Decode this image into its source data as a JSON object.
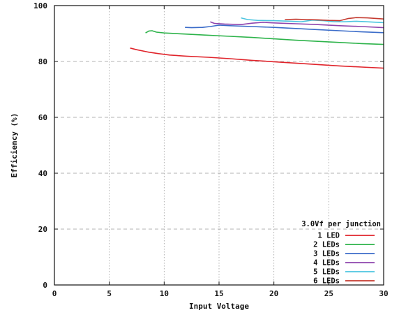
{
  "chart_data": {
    "type": "line",
    "title": "",
    "xlabel": "Input Voltage",
    "ylabel": "Efficiency (%)",
    "xlim": [
      0,
      30
    ],
    "ylim": [
      0,
      100
    ],
    "xticks": [
      0,
      5,
      10,
      15,
      20,
      25,
      30
    ],
    "yticks": [
      0,
      20,
      40,
      60,
      80,
      100
    ],
    "grid": true,
    "legend_position": "bottom-right",
    "legend_title": "3.0Vf per junction",
    "series": [
      {
        "name": "1 LED",
        "color": "#e0242b",
        "points": [
          [
            6.9,
            84.8
          ],
          [
            7.5,
            84.2
          ],
          [
            8.5,
            83.4
          ],
          [
            9.5,
            82.8
          ],
          [
            10.5,
            82.3
          ],
          [
            12,
            81.9
          ],
          [
            14,
            81.5
          ],
          [
            16,
            81.0
          ],
          [
            18,
            80.4
          ],
          [
            20,
            79.9
          ],
          [
            22,
            79.4
          ],
          [
            24,
            78.9
          ],
          [
            26,
            78.4
          ],
          [
            28,
            78.0
          ],
          [
            30,
            77.6
          ]
        ]
      },
      {
        "name": "2 LEDs",
        "color": "#2db34a",
        "points": [
          [
            8.3,
            90.2
          ],
          [
            8.6,
            90.9
          ],
          [
            8.9,
            91.0
          ],
          [
            9.3,
            90.5
          ],
          [
            10,
            90.2
          ],
          [
            12,
            89.8
          ],
          [
            14,
            89.4
          ],
          [
            16,
            89.0
          ],
          [
            18,
            88.6
          ],
          [
            20,
            88.1
          ],
          [
            22,
            87.6
          ],
          [
            24,
            87.2
          ],
          [
            26,
            86.8
          ],
          [
            28,
            86.4
          ],
          [
            30,
            86.1
          ]
        ]
      },
      {
        "name": "3 LEDs",
        "color": "#3b6cc9",
        "points": [
          [
            11.9,
            92.2
          ],
          [
            12.5,
            92.1
          ],
          [
            13.5,
            92.2
          ],
          [
            14.2,
            92.5
          ],
          [
            15,
            93.0
          ],
          [
            16,
            92.8
          ],
          [
            18,
            92.5
          ],
          [
            20,
            92.2
          ],
          [
            22,
            91.8
          ],
          [
            24,
            91.4
          ],
          [
            26,
            91.0
          ],
          [
            28,
            90.6
          ],
          [
            30,
            90.3
          ]
        ]
      },
      {
        "name": "4 LEDs",
        "color": "#8e44ad",
        "points": [
          [
            14.2,
            94.2
          ],
          [
            14.6,
            93.6
          ],
          [
            15.5,
            93.4
          ],
          [
            17,
            93.2
          ],
          [
            18,
            93.7
          ],
          [
            19,
            94.0
          ],
          [
            20,
            93.8
          ],
          [
            22,
            93.5
          ],
          [
            24,
            93.2
          ],
          [
            26,
            92.8
          ],
          [
            28,
            92.5
          ],
          [
            30,
            92.1
          ]
        ]
      },
      {
        "name": "5 LEDs",
        "color": "#4cc5e0",
        "points": [
          [
            17.0,
            95.6
          ],
          [
            17.6,
            95.0
          ],
          [
            18.5,
            94.7
          ],
          [
            20,
            94.6
          ],
          [
            21.5,
            94.4
          ],
          [
            22.5,
            94.2
          ],
          [
            23.5,
            94.8
          ],
          [
            24.5,
            94.6
          ],
          [
            25.5,
            94.2
          ],
          [
            26.5,
            94.2
          ],
          [
            27.5,
            94.4
          ],
          [
            28.5,
            94.2
          ],
          [
            30,
            93.9
          ]
        ]
      },
      {
        "name": "6 LEDs",
        "color": "#c43a2f",
        "points": [
          [
            21.0,
            95.0
          ],
          [
            22,
            95.1
          ],
          [
            23,
            95.0
          ],
          [
            24,
            94.9
          ],
          [
            25,
            94.7
          ],
          [
            26,
            94.6
          ],
          [
            26.8,
            95.4
          ],
          [
            27.5,
            95.7
          ],
          [
            28.5,
            95.6
          ],
          [
            30,
            95.2
          ]
        ]
      }
    ]
  }
}
